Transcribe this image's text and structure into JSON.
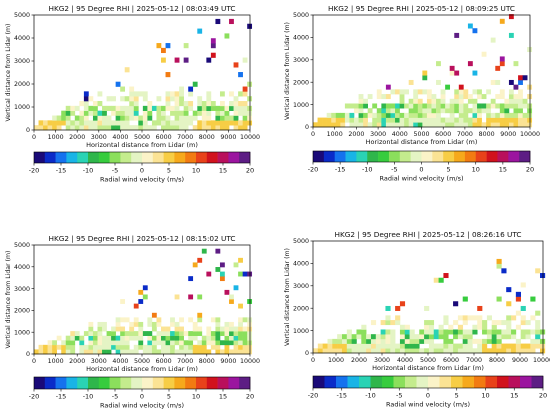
{
  "chart_data": [
    {
      "type": "heatmap",
      "title": "HKG2 | 95 Degree RHI | 2025-05-12 | 08:03:49 UTC",
      "xlabel": "Horizontal distance from Lidar (m)",
      "ylabel": "Vertical distance from Lidar (m)",
      "xlim": [
        0,
        10000
      ],
      "ylim": [
        0,
        5000
      ],
      "xticks": [
        "0",
        "1000",
        "2000",
        "3000",
        "4000",
        "5000",
        "6000",
        "7000",
        "8000",
        "9000",
        "10000"
      ],
      "yticks": [
        "0",
        "1000",
        "2000",
        "3000",
        "4000",
        "5000"
      ],
      "colorbar": {
        "label": "Radial wind velocity (m/s)",
        "range": [
          -20,
          20
        ],
        "ticks": [
          "-20",
          "-15",
          "-10",
          "-5",
          "0",
          "5",
          "10",
          "15",
          "20"
        ]
      },
      "seed": 11
    },
    {
      "type": "heatmap",
      "title": "HKG2 | 95 Degree RHI | 2025-05-12 | 08:09:25 UTC",
      "xlabel": "Horizontal distance from Lidar (m)",
      "ylabel": "Vertical distance from Lidar (m)",
      "xlim": [
        0,
        10000
      ],
      "ylim": [
        0,
        5000
      ],
      "xticks": [
        "0",
        "1000",
        "2000",
        "3000",
        "4000",
        "5000",
        "6000",
        "7000",
        "8000",
        "9000",
        "10000"
      ],
      "yticks": [
        "0",
        "1000",
        "2000",
        "3000",
        "4000",
        "5000"
      ],
      "colorbar": {
        "label": "Radial wind velocity (m/s)",
        "range": [
          -20,
          20
        ],
        "ticks": [
          "-20",
          "-15",
          "-10",
          "-5",
          "0",
          "5",
          "10",
          "15",
          "20"
        ]
      },
      "seed": 23
    },
    {
      "type": "heatmap",
      "title": "HKG2 | 95 Degree RHI | 2025-05-12 | 08:15:02 UTC",
      "xlabel": "Horizontal distance from Lidar (m)",
      "ylabel": "Vertical distance from Lidar (m)",
      "xlim": [
        0,
        10000
      ],
      "ylim": [
        0,
        5000
      ],
      "xticks": [
        "0",
        "1000",
        "2000",
        "3000",
        "4000",
        "5000",
        "6000",
        "7000",
        "8000",
        "9000",
        "10000"
      ],
      "yticks": [
        "0",
        "1000",
        "2000",
        "3000",
        "4000",
        "5000"
      ],
      "colorbar": {
        "label": "Radial wind velocity (m/s)",
        "range": [
          -20,
          20
        ],
        "ticks": [
          "-20",
          "-15",
          "-10",
          "-5",
          "0",
          "5",
          "10",
          "15",
          "20"
        ]
      },
      "seed": 37
    },
    {
      "type": "heatmap",
      "title": "HKG2 | 95 Degree RHI | 2025-05-12 | 08:26:16 UTC",
      "xlabel": "Horizontal distance from Lidar (m)",
      "ylabel": "Vertical distance from Lidar (m)",
      "xlim": [
        0,
        10000
      ],
      "ylim": [
        0,
        5000
      ],
      "xticks": [
        "0",
        "1000",
        "2000",
        "3000",
        "4000",
        "5000",
        "6000",
        "7000",
        "8000",
        "9000",
        "10000"
      ],
      "yticks": [
        "0",
        "1000",
        "2000",
        "3000",
        "4000",
        "5000"
      ],
      "colorbar": {
        "label": "Radial wind velocity (m/s)",
        "range": [
          -20,
          20
        ],
        "ticks": [
          "-20",
          "-15",
          "-10",
          "-5",
          "0",
          "5",
          "10",
          "15",
          "20"
        ]
      },
      "seed": 53
    }
  ],
  "colormap": [
    "#1a0a78",
    "#0a2bc8",
    "#1572ee",
    "#19b4e6",
    "#2ad3b4",
    "#2fb64b",
    "#37cc3e",
    "#8bdf5c",
    "#c4ec8d",
    "#e4f4c4",
    "#fbf3c8",
    "#fbe394",
    "#f7cd45",
    "#f6a91c",
    "#f27b12",
    "#e8421a",
    "#d1121d",
    "#b9105c",
    "#9b159f",
    "#5d1d84"
  ]
}
